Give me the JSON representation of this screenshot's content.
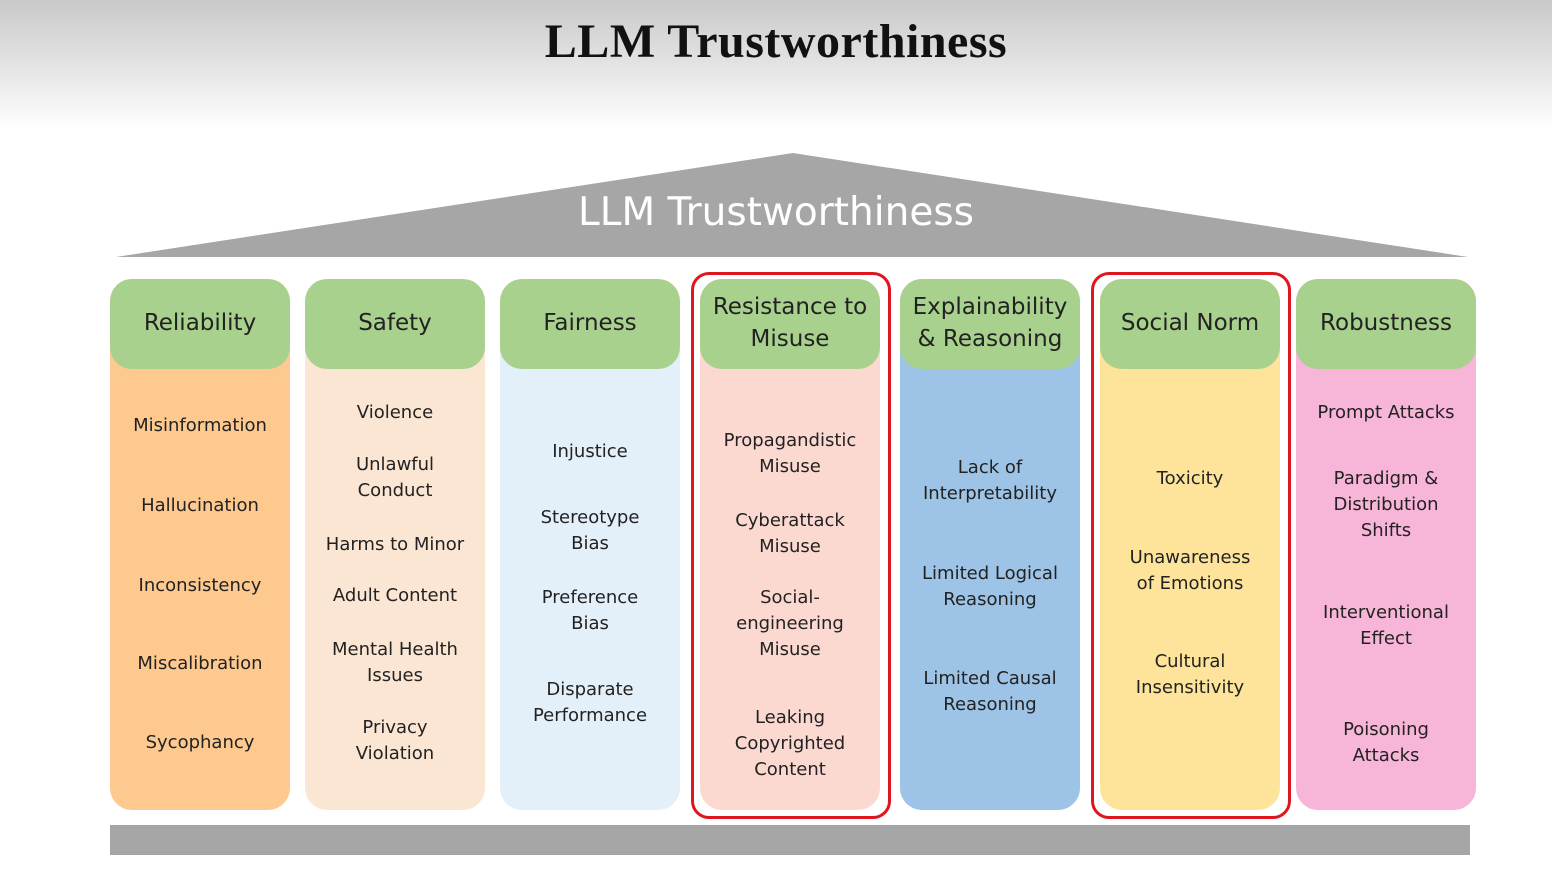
{
  "title": "LLM Trustworthiness",
  "roof_label": "LLM Trustworthiness",
  "colors": {
    "header_green": "#a9d18e",
    "roof_gray": "#a6a6a6",
    "highlight_red": "#e0161e"
  },
  "pillars": [
    {
      "id": "reliability",
      "title": "Reliability",
      "color": "#fdc98f",
      "highlighted": false,
      "items": [
        "Misinformation",
        "Hallucination",
        "Inconsistency",
        "Miscalibration",
        "Sycophancy"
      ]
    },
    {
      "id": "safety",
      "title": "Safety",
      "color": "#fbe6d3",
      "highlighted": false,
      "items": [
        "Violence",
        "Unlawful Conduct",
        "Harms to Minor",
        "Adult Content",
        "Mental Health Issues",
        "Privacy Violation"
      ]
    },
    {
      "id": "fairness",
      "title": "Fairness",
      "color": "#e3eff9",
      "highlighted": false,
      "items": [
        "Injustice",
        "Stereotype Bias",
        "Preference Bias",
        "Disparate Performance"
      ]
    },
    {
      "id": "resistance-to-misuse",
      "title": "Resistance to Misuse",
      "color": "#fbd9d1",
      "highlighted": true,
      "items": [
        "Propagandistic Misuse",
        "Cyberattack Misuse",
        "Social-engineering Misuse",
        "Leaking Copyrighted Content"
      ]
    },
    {
      "id": "explainability-reasoning",
      "title": "Explainability & Reasoning",
      "color": "#9dc3e6",
      "highlighted": false,
      "items": [
        "Lack of Interpretability",
        "Limited Logical Reasoning",
        "Limited Causal Reasoning"
      ]
    },
    {
      "id": "social-norm",
      "title": "Social Norm",
      "color": "#fde49a",
      "highlighted": true,
      "items": [
        "Toxicity",
        "Unawareness of Emotions",
        "Cultural Insensitivity"
      ]
    },
    {
      "id": "robustness",
      "title": "Robustness",
      "color": "#f7b5d8",
      "highlighted": false,
      "items": [
        "Prompt Attacks",
        "Paradigm & Distribution Shifts",
        "Interventional Effect",
        "Poisoning Attacks"
      ]
    }
  ]
}
